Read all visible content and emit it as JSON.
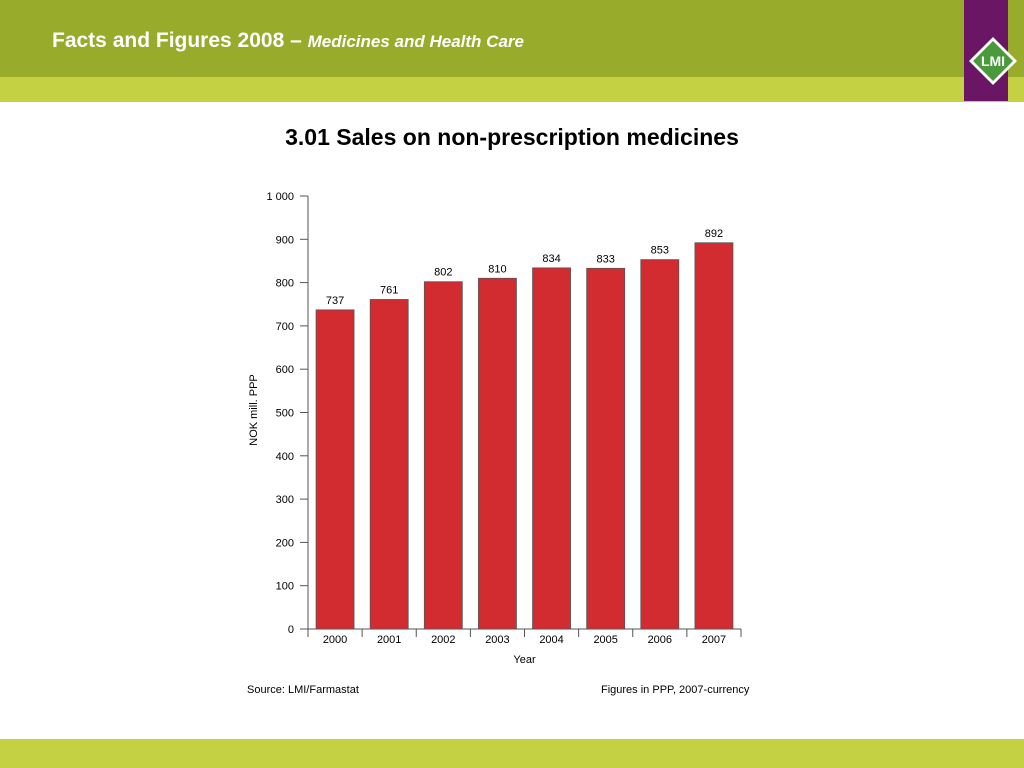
{
  "header": {
    "title": "Facts and Figures 2008 –",
    "subtitle": "Medicines and Health Care",
    "logo_text": "LMI"
  },
  "colors": {
    "header_green": "#99ab2a",
    "stripe_green": "#c3d143",
    "logo_purple": "#6b1664",
    "bar_red": "#d22b30"
  },
  "chart_data": {
    "type": "bar",
    "title": "3.01 Sales on non-prescription medicines",
    "xlabel": "Year",
    "ylabel": "NOK mill. PPP",
    "categories": [
      "2000",
      "2001",
      "2002",
      "2003",
      "2004",
      "2005",
      "2006",
      "2007"
    ],
    "values": [
      737,
      761,
      802,
      810,
      834,
      833,
      853,
      892
    ],
    "ylim": [
      0,
      1000
    ],
    "yticks": [
      0,
      100,
      200,
      300,
      400,
      500,
      600,
      700,
      800,
      900,
      1000
    ],
    "ytick_labels": [
      "0",
      "100",
      "200",
      "300",
      "400",
      "500",
      "600",
      "700",
      "800",
      "900",
      "1 000"
    ],
    "grid": false,
    "data_labels": true
  },
  "footer": {
    "source": "Source: LMI/Farmastat",
    "note": "Figures in PPP, 2007-currency"
  }
}
